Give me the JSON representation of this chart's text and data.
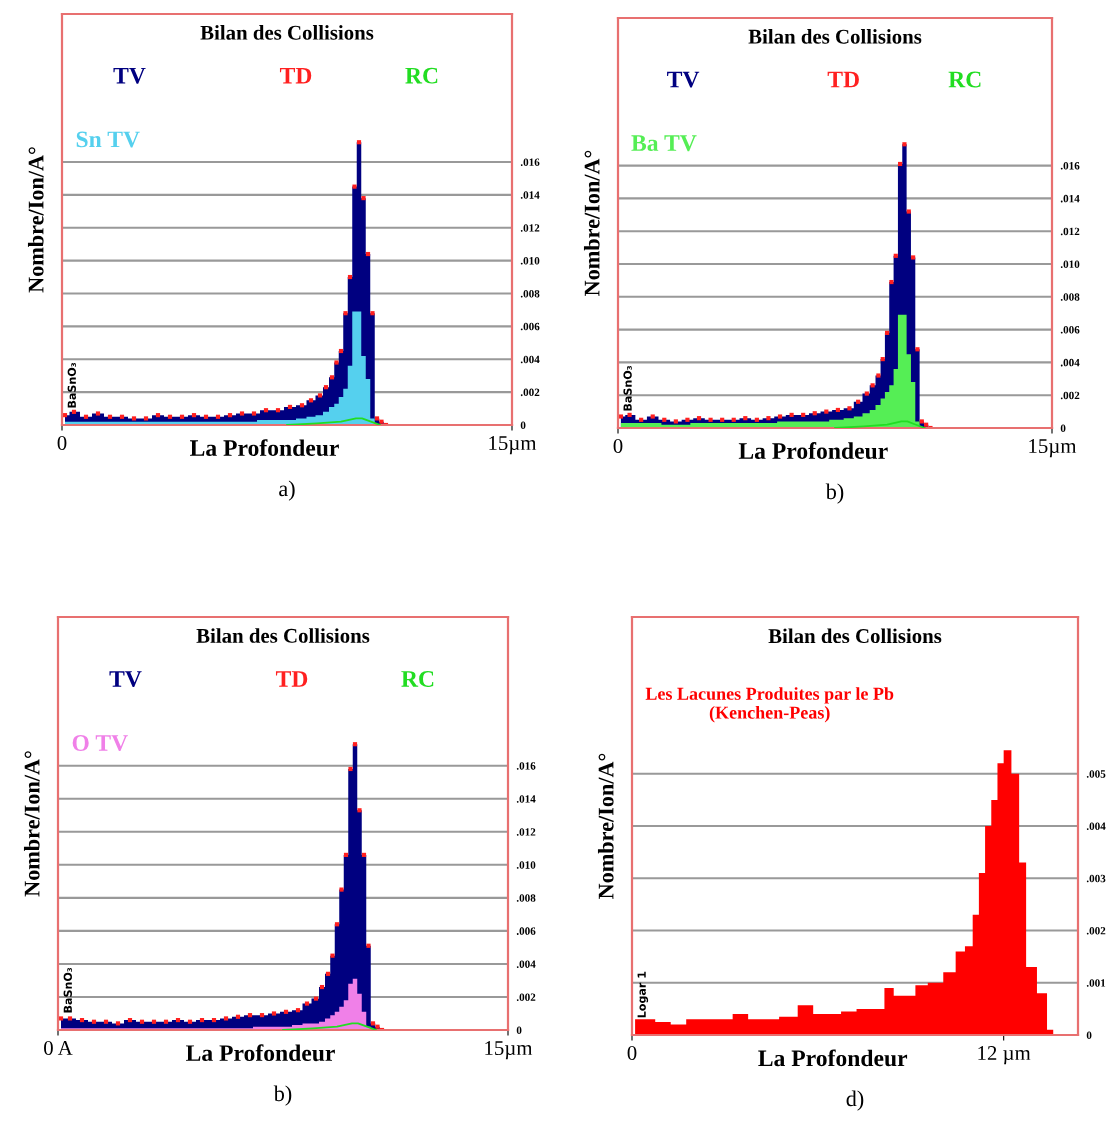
{
  "chart_data": [
    {
      "type": "area",
      "title": "Bilan des Collisions",
      "xlabel": "La Profondeur",
      "ylabel": "Nombre/Ion/A°",
      "xlim": [
        0,
        15
      ],
      "xticks": [
        {
          "value": 0,
          "label": "0"
        },
        {
          "value": 15,
          "label": "15µm"
        }
      ],
      "ylim": [
        0,
        0.025
      ],
      "yticks": [
        0,
        {
          "value": 0.002,
          "label": ".002"
        },
        {
          "value": 0.004,
          "label": ".004"
        },
        {
          "value": 0.006,
          "label": ".006"
        },
        {
          "value": 0.008,
          "label": ".008"
        },
        {
          "value": 0.01,
          "label": ".010"
        },
        {
          "value": 0.012,
          "label": ".012"
        },
        {
          "value": 0.014,
          "label": ".014"
        },
        {
          "value": 0.016,
          "label": ".016"
        }
      ],
      "grid": "y",
      "legend": "top",
      "annotations": [
        "BaSnO₃",
        "a)"
      ],
      "series": [
        {
          "name": "TV",
          "color": "#000080",
          "x": [
            0.1,
            0.4,
            0.8,
            1.2,
            1.6,
            2.0,
            2.4,
            2.8,
            3.2,
            3.6,
            4.0,
            4.4,
            4.8,
            5.2,
            5.6,
            6.0,
            6.4,
            6.8,
            7.2,
            7.6,
            8.0,
            8.3,
            8.6,
            8.8,
            9.0,
            9.15,
            9.3,
            9.45,
            9.6,
            9.75,
            9.9,
            10.05,
            10.2,
            10.35,
            10.5,
            10.65,
            10.8
          ],
          "values": [
            0.0006,
            0.0008,
            0.0005,
            0.0007,
            0.0005,
            0.0005,
            0.0004,
            0.0004,
            0.0006,
            0.0005,
            0.0005,
            0.0006,
            0.0005,
            0.0005,
            0.0006,
            0.0007,
            0.0007,
            0.0009,
            0.0009,
            0.0011,
            0.0012,
            0.0015,
            0.0018,
            0.0023,
            0.0029,
            0.0038,
            0.0045,
            0.0068,
            0.009,
            0.0145,
            0.0172,
            0.0138,
            0.0104,
            0.0068,
            0.0004,
            0.0002,
            0
          ]
        },
        {
          "name": "TD",
          "type": "scatter",
          "marker": "square",
          "color": "#ff2020",
          "x": [
            0.1,
            0.4,
            0.8,
            1.2,
            1.6,
            2.0,
            2.4,
            2.8,
            3.2,
            3.6,
            4.0,
            4.4,
            4.8,
            5.2,
            5.6,
            6.0,
            6.4,
            6.8,
            7.2,
            7.6,
            8.0,
            8.3,
            8.6,
            8.8,
            9.0,
            9.15,
            9.3,
            9.45,
            9.6,
            9.75,
            9.9,
            10.05,
            10.2,
            10.35,
            10.5,
            10.65,
            10.8
          ],
          "values": [
            0.0006,
            0.0008,
            0.0005,
            0.0007,
            0.0005,
            0.0005,
            0.0004,
            0.0004,
            0.0006,
            0.0005,
            0.0005,
            0.0006,
            0.0005,
            0.0005,
            0.0006,
            0.0007,
            0.0007,
            0.0009,
            0.0009,
            0.0011,
            0.0012,
            0.0015,
            0.0018,
            0.0023,
            0.0029,
            0.0038,
            0.0045,
            0.0068,
            0.009,
            0.0145,
            0.0172,
            0.0138,
            0.0104,
            0.0068,
            0.0004,
            0.0002,
            0
          ]
        },
        {
          "name": "RC",
          "type": "line",
          "color": "#22dd22",
          "x": [
            7.5,
            8.5,
            9.3,
            9.8,
            10.0,
            10.3,
            10.6
          ],
          "values": [
            0,
            0.0001,
            0.0002,
            0.0004,
            0.0004,
            0.0002,
            0
          ]
        },
        {
          "name": "Sn TV",
          "color": "#55d0ee",
          "x": [
            0.1,
            1.0,
            2.0,
            3.0,
            4.0,
            5.0,
            6.0,
            7.0,
            7.6,
            8.0,
            8.3,
            8.6,
            8.8,
            9.0,
            9.15,
            9.3,
            9.45,
            9.6,
            9.75,
            9.9,
            10.05,
            10.2,
            10.35,
            10.5
          ],
          "values": [
            0.0002,
            0.0002,
            0.0002,
            0.0002,
            0.0002,
            0.0002,
            0.0002,
            0.0003,
            0.0003,
            0.0004,
            0.0005,
            0.0006,
            0.0008,
            0.0011,
            0.0013,
            0.0017,
            0.0022,
            0.0036,
            0.0069,
            0.0069,
            0.0042,
            0.0028,
            0.0004,
            0
          ]
        }
      ]
    },
    {
      "type": "area",
      "title": "Bilan des Collisions",
      "xlabel": "La Profondeur",
      "ylabel": "Nombre/Ion/A°",
      "xlim": [
        0,
        15
      ],
      "xticks": [
        {
          "value": 0,
          "label": "0"
        },
        {
          "value": 15,
          "label": "15µm"
        }
      ],
      "ylim": [
        0,
        0.025
      ],
      "yticks": [
        0,
        {
          "value": 0.002,
          "label": ".002"
        },
        {
          "value": 0.004,
          "label": ".004"
        },
        {
          "value": 0.006,
          "label": ".006"
        },
        {
          "value": 0.008,
          "label": ".008"
        },
        {
          "value": 0.01,
          "label": ".010"
        },
        {
          "value": 0.012,
          "label": ".012"
        },
        {
          "value": 0.014,
          "label": ".014"
        },
        {
          "value": 0.016,
          "label": ".016"
        }
      ],
      "grid": "y",
      "legend": "top",
      "annotations": [
        "BaSnO₃",
        "b)"
      ],
      "series": [
        {
          "name": "TV",
          "color": "#000080",
          "x": [
            0.1,
            0.4,
            0.8,
            1.2,
            1.6,
            2.0,
            2.4,
            2.8,
            3.2,
            3.6,
            4.0,
            4.4,
            4.8,
            5.2,
            5.6,
            6.0,
            6.4,
            6.8,
            7.2,
            7.6,
            8.0,
            8.3,
            8.6,
            8.8,
            9.0,
            9.15,
            9.3,
            9.45,
            9.6,
            9.75,
            9.9,
            10.05,
            10.2,
            10.35,
            10.5,
            10.65,
            10.8
          ],
          "values": [
            0.0007,
            0.0008,
            0.0005,
            0.0007,
            0.0005,
            0.0004,
            0.0005,
            0.0006,
            0.0005,
            0.0005,
            0.0005,
            0.0006,
            0.0005,
            0.0006,
            0.0007,
            0.0008,
            0.0008,
            0.0009,
            0.001,
            0.0011,
            0.0012,
            0.0016,
            0.0021,
            0.0026,
            0.0032,
            0.0042,
            0.0058,
            0.0089,
            0.0105,
            0.0161,
            0.0173,
            0.0132,
            0.0104,
            0.0048,
            0.0004,
            0.0002,
            0
          ]
        },
        {
          "name": "TD",
          "type": "scatter",
          "marker": "square",
          "color": "#ff2020",
          "x": [
            0.1,
            0.4,
            0.8,
            1.2,
            1.6,
            2.0,
            2.4,
            2.8,
            3.2,
            3.6,
            4.0,
            4.4,
            4.8,
            5.2,
            5.6,
            6.0,
            6.4,
            6.8,
            7.2,
            7.6,
            8.0,
            8.3,
            8.6,
            8.8,
            9.0,
            9.15,
            9.3,
            9.45,
            9.6,
            9.75,
            9.9,
            10.05,
            10.2,
            10.35,
            10.5,
            10.65,
            10.8
          ],
          "values": [
            0.0007,
            0.0008,
            0.0005,
            0.0007,
            0.0005,
            0.0004,
            0.0005,
            0.0006,
            0.0005,
            0.0005,
            0.0005,
            0.0006,
            0.0005,
            0.0006,
            0.0007,
            0.0008,
            0.0008,
            0.0009,
            0.001,
            0.0011,
            0.0012,
            0.0016,
            0.0021,
            0.0026,
            0.0032,
            0.0042,
            0.0058,
            0.0089,
            0.0105,
            0.0161,
            0.0173,
            0.0132,
            0.0104,
            0.0048,
            0.0004,
            0.0002,
            0
          ]
        },
        {
          "name": "RC",
          "type": "line",
          "color": "#22dd22",
          "x": [
            7.5,
            8.5,
            9.3,
            9.8,
            10.0,
            10.3,
            10.6
          ],
          "values": [
            0,
            0.0001,
            0.0002,
            0.0004,
            0.0004,
            0.0002,
            0
          ]
        },
        {
          "name": "Ba TV",
          "color": "#55ee55",
          "x": [
            0.1,
            1.0,
            2.0,
            3.0,
            4.0,
            5.0,
            6.0,
            7.0,
            7.6,
            8.0,
            8.3,
            8.6,
            8.8,
            9.0,
            9.15,
            9.3,
            9.45,
            9.6,
            9.75,
            9.9,
            10.05,
            10.2,
            10.35,
            10.5
          ],
          "values": [
            0.0003,
            0.0003,
            0.0002,
            0.0003,
            0.0003,
            0.0003,
            0.0004,
            0.0004,
            0.0005,
            0.0006,
            0.0007,
            0.0009,
            0.0011,
            0.0014,
            0.0018,
            0.0022,
            0.0026,
            0.0036,
            0.0069,
            0.0069,
            0.0045,
            0.0028,
            0.0004,
            0
          ]
        }
      ]
    },
    {
      "type": "area",
      "title": "Bilan des Collisions",
      "xlabel": "La Profondeur",
      "ylabel": "Nombre/Ion/A°",
      "xlim": [
        0,
        15
      ],
      "xticks": [
        {
          "value": 0,
          "label": "0 A"
        },
        {
          "value": 15,
          "label": "15µm"
        }
      ],
      "ylim": [
        0,
        0.025
      ],
      "yticks": [
        0,
        {
          "value": 0.002,
          "label": ".002"
        },
        {
          "value": 0.004,
          "label": ".004"
        },
        {
          "value": 0.006,
          "label": ".006"
        },
        {
          "value": 0.008,
          "label": ".008"
        },
        {
          "value": 0.01,
          "label": ".010"
        },
        {
          "value": 0.012,
          "label": ".012"
        },
        {
          "value": 0.014,
          "label": ".014"
        },
        {
          "value": 0.016,
          "label": ".016"
        }
      ],
      "grid": "y",
      "legend": "top",
      "annotations": [
        "BaSnO₃",
        "b)"
      ],
      "series": [
        {
          "name": "TV",
          "color": "#000080",
          "x": [
            0.1,
            0.4,
            0.8,
            1.2,
            1.6,
            2.0,
            2.4,
            2.8,
            3.2,
            3.6,
            4.0,
            4.4,
            4.8,
            5.2,
            5.6,
            6.0,
            6.4,
            6.8,
            7.2,
            7.6,
            8.0,
            8.3,
            8.6,
            8.8,
            9.0,
            9.15,
            9.3,
            9.45,
            9.6,
            9.75,
            9.9,
            10.05,
            10.2,
            10.35,
            10.5,
            10.65,
            10.8
          ],
          "values": [
            0.0007,
            0.0007,
            0.0006,
            0.0005,
            0.0005,
            0.0004,
            0.0006,
            0.0005,
            0.0005,
            0.0005,
            0.0006,
            0.0005,
            0.0006,
            0.0006,
            0.0007,
            0.0008,
            0.0009,
            0.0009,
            0.001,
            0.0011,
            0.0012,
            0.0016,
            0.0019,
            0.0026,
            0.0034,
            0.0045,
            0.0064,
            0.0085,
            0.0106,
            0.0158,
            0.0173,
            0.0133,
            0.0106,
            0.0051,
            0.0004,
            0.0002,
            0
          ]
        },
        {
          "name": "TD",
          "type": "scatter",
          "marker": "square",
          "color": "#ff2020",
          "x": [
            0.1,
            0.4,
            0.8,
            1.2,
            1.6,
            2.0,
            2.4,
            2.8,
            3.2,
            3.6,
            4.0,
            4.4,
            4.8,
            5.2,
            5.6,
            6.0,
            6.4,
            6.8,
            7.2,
            7.6,
            8.0,
            8.3,
            8.6,
            8.8,
            9.0,
            9.15,
            9.3,
            9.45,
            9.6,
            9.75,
            9.9,
            10.05,
            10.2,
            10.35,
            10.5,
            10.65,
            10.8
          ],
          "values": [
            0.0007,
            0.0007,
            0.0006,
            0.0005,
            0.0005,
            0.0004,
            0.0006,
            0.0005,
            0.0005,
            0.0005,
            0.0006,
            0.0005,
            0.0006,
            0.0006,
            0.0007,
            0.0008,
            0.0009,
            0.0009,
            0.001,
            0.0011,
            0.0012,
            0.0016,
            0.0019,
            0.0026,
            0.0034,
            0.0045,
            0.0064,
            0.0085,
            0.0106,
            0.0158,
            0.0173,
            0.0133,
            0.0106,
            0.0051,
            0.0004,
            0.0002,
            0
          ]
        },
        {
          "name": "RC",
          "type": "line",
          "color": "#22dd22",
          "x": [
            7.5,
            8.5,
            9.3,
            9.8,
            10.0,
            10.3,
            10.6
          ],
          "values": [
            0,
            0.0001,
            0.0002,
            0.0004,
            0.0004,
            0.0002,
            0
          ]
        },
        {
          "name": "O TV",
          "color": "#f080e8",
          "x": [
            0.1,
            1.0,
            2.0,
            3.0,
            4.0,
            5.0,
            6.0,
            7.0,
            7.6,
            8.0,
            8.3,
            8.6,
            8.8,
            9.0,
            9.15,
            9.3,
            9.45,
            9.6,
            9.75,
            9.9,
            10.05,
            10.2,
            10.35,
            10.5
          ],
          "values": [
            0.0001,
            0.0001,
            0.0001,
            0.0001,
            0.0001,
            0.0001,
            0.0001,
            0.0002,
            0.0002,
            0.0003,
            0.0004,
            0.0004,
            0.0005,
            0.0007,
            0.0009,
            0.0011,
            0.0014,
            0.0018,
            0.0028,
            0.0031,
            0.0022,
            0.0011,
            0.0002,
            0
          ]
        }
      ]
    },
    {
      "type": "area",
      "title": "Bilan des Collisions",
      "subtitle": "Les Lacunes Produites par le Pb\n(Kenchen-Peas)",
      "xlabel": "La Profondeur",
      "ylabel": "Nombre/Ion/A°",
      "xlim": [
        0,
        14.4
      ],
      "xticks": [
        {
          "value": 0,
          "label": "0"
        },
        {
          "value": 12,
          "label": "12 µm"
        }
      ],
      "ylim": [
        0,
        0.008
      ],
      "yticks": [
        0,
        {
          "value": 0.001,
          "label": ".001"
        },
        {
          "value": 0.002,
          "label": ".002"
        },
        {
          "value": 0.003,
          "label": ".003"
        },
        {
          "value": 0.004,
          "label": ".004"
        },
        {
          "value": 0.005,
          "label": ".005"
        }
      ],
      "grid": "y",
      "annotations": [
        "Logar 1",
        "d)"
      ],
      "series": [
        {
          "color": "#ff0000",
          "x": [
            0.1,
            0.5,
            1.0,
            1.5,
            2.0,
            2.5,
            3.0,
            3.5,
            4.0,
            4.5,
            5.0,
            5.7,
            6.0,
            6.5,
            7.0,
            7.5,
            8.0,
            8.3,
            8.6,
            9.0,
            9.3,
            9.8,
            10.3,
            10.6,
            10.9,
            11.1,
            11.3,
            11.5,
            11.7,
            11.9,
            12.1,
            12.4,
            12.6,
            12.85,
            13.3,
            13.5,
            13.7
          ],
          "values": [
            0.0003,
            0.0003,
            0.00025,
            0.0002,
            0.0003,
            0.0003,
            0.0003,
            0.0004,
            0.0003,
            0.0003,
            0.00035,
            0.00057,
            0.0004,
            0.0004,
            0.00045,
            0.0005,
            0.0005,
            0.0009,
            0.00075,
            0.00075,
            0.00095,
            0.001,
            0.0012,
            0.0016,
            0.0017,
            0.0023,
            0.0031,
            0.004,
            0.0045,
            0.0052,
            0.00545,
            0.005,
            0.0033,
            0.0013,
            0.0008,
            0.0001,
            0
          ]
        }
      ]
    }
  ]
}
